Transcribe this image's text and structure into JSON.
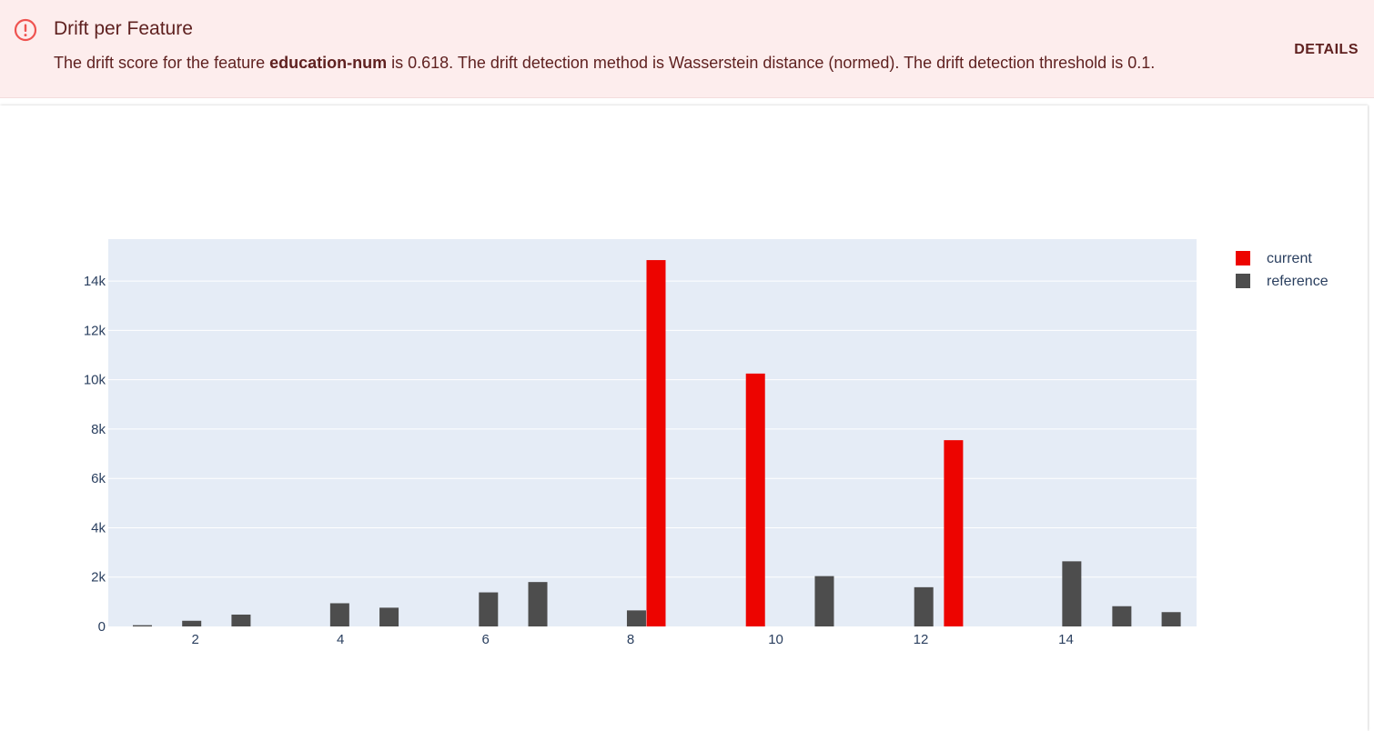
{
  "alert": {
    "title": "Drift per Feature",
    "message_prefix": "The drift score for the feature ",
    "feature": "education-num",
    "message_suffix": " is 0.618. The drift detection method is Wasserstein distance (normed). The drift detection threshold is 0.1.",
    "details_label": "DETAILS",
    "icon": "error-outline-icon",
    "icon_color": "#ef5350"
  },
  "chart_data": {
    "type": "bar",
    "xlim": [
      0.8,
      15.8
    ],
    "ylim": [
      0,
      15700
    ],
    "xticks": [
      2,
      4,
      6,
      8,
      10,
      12,
      14
    ],
    "yticks": [
      0,
      2000,
      4000,
      6000,
      8000,
      10000,
      12000,
      14000
    ],
    "ytick_labels": [
      "0",
      "2k",
      "4k",
      "6k",
      "8k",
      "10k",
      "12k",
      "14k"
    ],
    "grid": true,
    "plot_bgcolor": "#e5ecf6",
    "legend_position": "top-right",
    "series": [
      {
        "name": "current",
        "color": "#ed0400",
        "points": [
          {
            "x": 8.35,
            "y": 14850
          },
          {
            "x": 9.72,
            "y": 10250
          },
          {
            "x": 12.45,
            "y": 7550
          }
        ]
      },
      {
        "name": "reference",
        "color": "#4d4d4d",
        "points": [
          {
            "x": 1.27,
            "y": 50
          },
          {
            "x": 1.95,
            "y": 230
          },
          {
            "x": 2.63,
            "y": 480
          },
          {
            "x": 3.99,
            "y": 940
          },
          {
            "x": 4.67,
            "y": 760
          },
          {
            "x": 6.04,
            "y": 1380
          },
          {
            "x": 6.72,
            "y": 1800
          },
          {
            "x": 8.08,
            "y": 650
          },
          {
            "x": 10.67,
            "y": 2040
          },
          {
            "x": 12.04,
            "y": 1590
          },
          {
            "x": 14.08,
            "y": 2640
          },
          {
            "x": 14.77,
            "y": 820
          },
          {
            "x": 15.45,
            "y": 580
          }
        ]
      }
    ]
  }
}
